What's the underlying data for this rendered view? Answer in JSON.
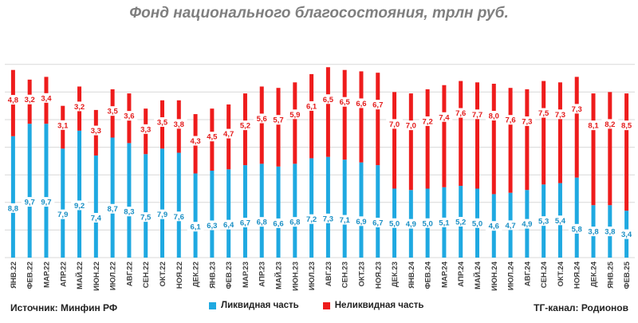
{
  "chart_data": {
    "type": "bar",
    "stacked": true,
    "title": "Фонд национального благосостояния, трлн руб.",
    "categories": [
      "ЯНВ.22",
      "ФЕВ.22",
      "МАР.22",
      "АПР.22",
      "МАЙ.22",
      "ИЮН.22",
      "ИЮЛ.22",
      "АВГ.22",
      "СЕН.22",
      "ОКТ.22",
      "НОЯ.22",
      "ДЕК.22",
      "ЯНВ.23",
      "ФЕВ.23",
      "МАР.23",
      "АПР.23",
      "МАЙ.23",
      "ИЮН.23",
      "ИЮЛ.23",
      "АВГ.23",
      "СЕН.23",
      "ОКТ.23",
      "НОЯ.23",
      "ДЕК.23",
      "ЯНВ.24",
      "ФЕВ.24",
      "МАР.24",
      "АПР.24",
      "МАЙ.24",
      "ИЮН.24",
      "ИЮЛ.24",
      "АВГ.24",
      "СЕН.24",
      "ОКТ.24",
      "НОЯ.24",
      "ДЕК.24",
      "ЯНВ.25",
      "ФЕВ.25"
    ],
    "series": [
      {
        "name": "Ликвидная часть",
        "color": "#1fa9e1",
        "labels": [
          "8,8",
          "9,7",
          "9,7",
          "7,9",
          "9,2",
          "7,4",
          "8,7",
          "8,3",
          "7,5",
          "7,9",
          "7,6",
          "6,1",
          "6,3",
          "6,4",
          "6,7",
          "6,8",
          "6,6",
          "6,8",
          "7,2",
          "7,3",
          "7,1",
          "6,9",
          "6,7",
          "5,0",
          "4,9",
          "5,0",
          "5,1",
          "5,2",
          "5,0",
          "4,6",
          "4,7",
          "4,9",
          "5,3",
          "5,4",
          "5,8",
          "3,8",
          "3,8",
          "3,4"
        ],
        "values": [
          8.8,
          9.7,
          9.7,
          7.9,
          9.2,
          7.4,
          8.7,
          8.3,
          7.5,
          7.9,
          7.6,
          6.1,
          6.3,
          6.4,
          6.7,
          6.8,
          6.6,
          6.8,
          7.2,
          7.3,
          7.1,
          6.9,
          6.7,
          5.0,
          4.9,
          5.0,
          5.1,
          5.2,
          5.0,
          4.6,
          4.7,
          4.9,
          5.3,
          5.4,
          5.8,
          3.8,
          3.8,
          3.4
        ]
      },
      {
        "name": "Неликвидная часть",
        "color": "#ee1c1c",
        "labels": [
          "4,8",
          "3,2",
          "3,4",
          "3,1",
          "3,2",
          "3,3",
          "3,5",
          "3,6",
          "3,3",
          "3,5",
          "3,8",
          "4,3",
          "4,5",
          "4,7",
          "5,2",
          "5,6",
          "5,7",
          "5,9",
          "6,1",
          "6,5",
          "6,5",
          "6,6",
          "6,7",
          "7,0",
          "7,0",
          "7,2",
          "7,4",
          "7,6",
          "7,7",
          "8,0",
          "7,6",
          "7,3",
          "7,5",
          "7,3",
          "7,3",
          "8,1",
          "8,2",
          "8,5"
        ],
        "values": [
          4.8,
          3.2,
          3.4,
          3.1,
          3.2,
          3.3,
          3.5,
          3.6,
          3.3,
          3.5,
          3.8,
          4.3,
          4.5,
          4.7,
          5.2,
          5.6,
          5.7,
          5.9,
          6.1,
          6.5,
          6.5,
          6.6,
          6.7,
          7.0,
          7.0,
          7.2,
          7.4,
          7.6,
          7.7,
          8.0,
          7.6,
          7.3,
          7.5,
          7.3,
          7.3,
          8.1,
          8.2,
          8.5
        ]
      }
    ],
    "ylim": [
      0,
      14
    ],
    "grid": true,
    "legend_position": "bottom"
  },
  "footer": {
    "source": "Источник: Минфин РФ",
    "channel": "ТГ-канал: Родионов"
  }
}
